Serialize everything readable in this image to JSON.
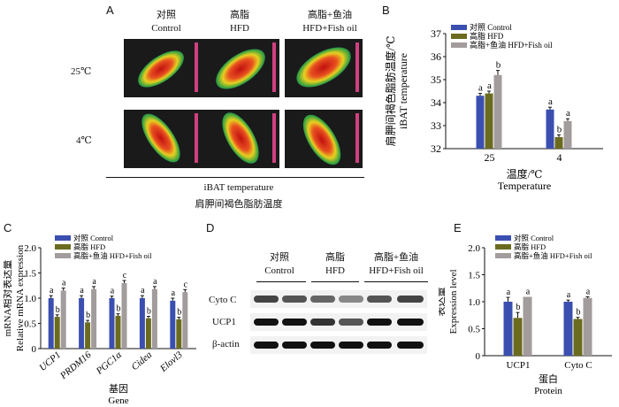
{
  "panelA": {
    "letter": "A",
    "groups": [
      {
        "zh": "对照",
        "en": "Control"
      },
      {
        "zh": "高脂",
        "en": "HFD"
      },
      {
        "zh": "高脂+鱼油",
        "en": "HFD+Fish oil"
      }
    ],
    "rows": [
      "25℃",
      "4℃"
    ],
    "caption_en": "iBAT temperature",
    "caption_zh": "肩胛间褐色脂肪温度"
  },
  "panelD": {
    "letter": "D",
    "groups": [
      {
        "zh": "对照",
        "en": "Control"
      },
      {
        "zh": "高脂",
        "en": "HFD"
      },
      {
        "zh": "高脂+鱼油",
        "en": "HFD+Fish oil"
      }
    ],
    "bands": [
      "Cyto C",
      "UCP1",
      "β-actin"
    ]
  },
  "colors": {
    "control": "#3b4fb0",
    "hfd": "#6b6b1f",
    "fish": "#a39c9c"
  },
  "chart_data": [
    {
      "panel": "B",
      "type": "bar",
      "ylabel_zh": "肩胛间褐色脂肪温度/℃",
      "ylabel_en": "iBAT temperature",
      "xlabel_zh": "温度/℃",
      "xlabel_en": "Temperature",
      "ylim": [
        32,
        37
      ],
      "yticks": [
        32,
        33,
        34,
        35,
        36,
        37
      ],
      "categories": [
        "25",
        "4"
      ],
      "legend": [
        "对照 Control",
        "高脂 HFD",
        "高脂+鱼油 HFD+Fish oil"
      ],
      "series": [
        {
          "name": "对照 Control",
          "values": [
            34.3,
            33.7
          ],
          "errors": [
            0.1,
            0.1
          ],
          "labels": [
            "a",
            "a"
          ]
        },
        {
          "name": "高脂 HFD",
          "values": [
            34.4,
            32.5
          ],
          "errors": [
            0.1,
            0.1
          ],
          "labels": [
            "a",
            "b"
          ]
        },
        {
          "name": "高脂+鱼油 HFD+Fish oil",
          "values": [
            35.2,
            33.2
          ],
          "errors": [
            0.2,
            0.1
          ],
          "labels": [
            "b",
            "a"
          ]
        }
      ]
    },
    {
      "panel": "C",
      "type": "bar",
      "ylabel_zh": "mRNA相对表达量",
      "ylabel_en": "Relative mRNA expression",
      "xlabel_zh": "基因",
      "xlabel_en": "Gene",
      "ylim": [
        0,
        2.0
      ],
      "yticks": [
        "0",
        "0.5",
        "1.0",
        "1.5",
        "2.0"
      ],
      "categories": [
        "UCP1",
        "PRDM16",
        "PGC1α",
        "Cidea",
        "Elovl3"
      ],
      "legend": [
        "对照 Control",
        "高脂 HFD",
        "高脂+鱼油 HFD+Fish oil"
      ],
      "series": [
        {
          "name": "对照 Control",
          "values": [
            1.0,
            1.0,
            1.0,
            1.0,
            0.95
          ],
          "errors": [
            0.05,
            0.05,
            0.04,
            0.05,
            0.05
          ],
          "labels": [
            "a",
            "a",
            "a",
            "a",
            "a"
          ]
        },
        {
          "name": "高脂 HFD",
          "values": [
            0.63,
            0.52,
            0.65,
            0.6,
            0.58
          ],
          "errors": [
            0.04,
            0.04,
            0.04,
            0.04,
            0.04
          ],
          "labels": [
            "b",
            "b",
            "b",
            "b",
            "b"
          ]
        },
        {
          "name": "高脂+鱼油 HFD+Fish oil",
          "values": [
            1.15,
            1.18,
            1.3,
            1.18,
            1.12
          ],
          "errors": [
            0.05,
            0.05,
            0.05,
            0.05,
            0.05
          ],
          "labels": [
            "a",
            "a",
            "c",
            "a",
            "c"
          ]
        }
      ]
    },
    {
      "panel": "E",
      "type": "bar",
      "ylabel_zh": "表达量",
      "ylabel_en": "Expression level",
      "xlabel_zh": "蛋白",
      "xlabel_en": "Protein",
      "ylim": [
        0,
        2.0
      ],
      "yticks": [
        "0",
        "0.5",
        "1.0",
        "1.5",
        "2.0"
      ],
      "categories": [
        "UCP1",
        "Cyto C"
      ],
      "legend": [
        "对照 Control",
        "高脂 HFD",
        "高脂+鱼油 HFD+Fish oil"
      ],
      "series": [
        {
          "name": "对照 Control",
          "values": [
            1.0,
            1.0
          ],
          "errors": [
            0.08,
            0.03
          ],
          "labels": [
            "a",
            "a"
          ]
        },
        {
          "name": "高脂 HFD",
          "values": [
            0.7,
            0.68
          ],
          "errors": [
            0.1,
            0.03
          ],
          "labels": [
            "b",
            "b"
          ]
        },
        {
          "name": "高脂+鱼油 HFD+Fish oil",
          "values": [
            1.09,
            1.07
          ],
          "errors": [
            0.0,
            0.02
          ],
          "labels": [
            "a",
            "a"
          ]
        }
      ]
    }
  ]
}
